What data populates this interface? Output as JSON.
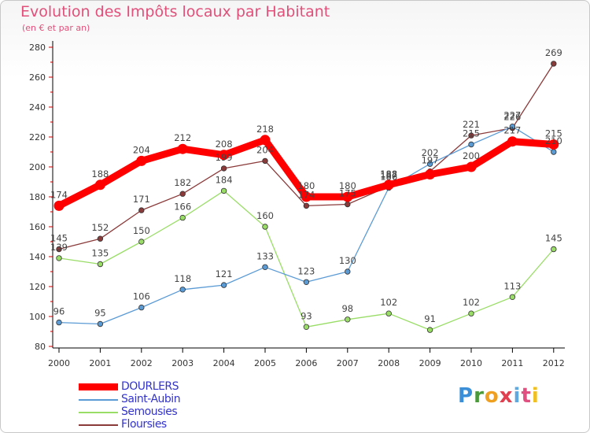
{
  "title": "Evolution des Impôts locaux par Habitant",
  "subtitle": "(en € et par an)",
  "logo": {
    "text": "Proxiti",
    "letters": [
      "P",
      "r",
      "o",
      "x",
      "i",
      "t",
      "i"
    ],
    "colors": [
      "#3a8fd8",
      "#4a9a3a",
      "#f0a020",
      "#e04050",
      "#60a8e0",
      "#e05080",
      "#f0c020"
    ]
  },
  "chart_data": {
    "type": "line",
    "title": "Evolution des Impôts locaux par Habitant",
    "subtitle": "(en € et par an)",
    "xlabel": "",
    "ylabel": "",
    "categories": [
      "2000",
      "2001",
      "2002",
      "2003",
      "2004",
      "2005",
      "2006",
      "2007",
      "2008",
      "2009",
      "2010",
      "2011",
      "2012"
    ],
    "yticks": [
      80,
      100,
      120,
      140,
      160,
      180,
      200,
      220,
      240,
      260,
      280
    ],
    "ylim": [
      80,
      280
    ],
    "grid": false,
    "legend_position": "bottom-left",
    "series": [
      {
        "name": "DOURLERS",
        "color": "#ff0000",
        "values": [
          174,
          188,
          204,
          212,
          208,
          218,
          180,
          180,
          188,
          195,
          200,
          217,
          215
        ],
        "labels": [
          "174",
          "188",
          "204",
          "212",
          "208",
          "218",
          "180",
          "180",
          "188",
          "",
          "200",
          "217",
          "215"
        ]
      },
      {
        "name": "Saint-Aubin",
        "color": "#5b9bd5",
        "values": [
          96,
          95,
          106,
          118,
          121,
          133,
          123,
          130,
          186,
          202,
          215,
          227,
          210
        ],
        "labels": [
          "96",
          "95",
          "106",
          "118",
          "121",
          "133",
          "123",
          "130",
          "186",
          "202",
          "215",
          "227",
          "210"
        ]
      },
      {
        "name": "Semousies",
        "color": "#99dd66",
        "values": [
          139,
          135,
          150,
          166,
          184,
          160,
          93,
          98,
          102,
          91,
          102,
          113,
          145
        ],
        "labels": [
          "139",
          "135",
          "150",
          "166",
          "184",
          "160",
          "93",
          "98",
          "102",
          "91",
          "102",
          "113",
          "145"
        ]
      },
      {
        "name": "Floursies",
        "color": "#8b3a3a",
        "values": [
          145,
          152,
          171,
          182,
          199,
          204,
          174,
          175,
          187,
          197,
          221,
          226,
          269
        ],
        "labels": [
          "145",
          "152",
          "171",
          "182",
          "199",
          "204",
          "174",
          "175",
          "187",
          "197",
          "221",
          "226",
          "269"
        ]
      }
    ]
  }
}
